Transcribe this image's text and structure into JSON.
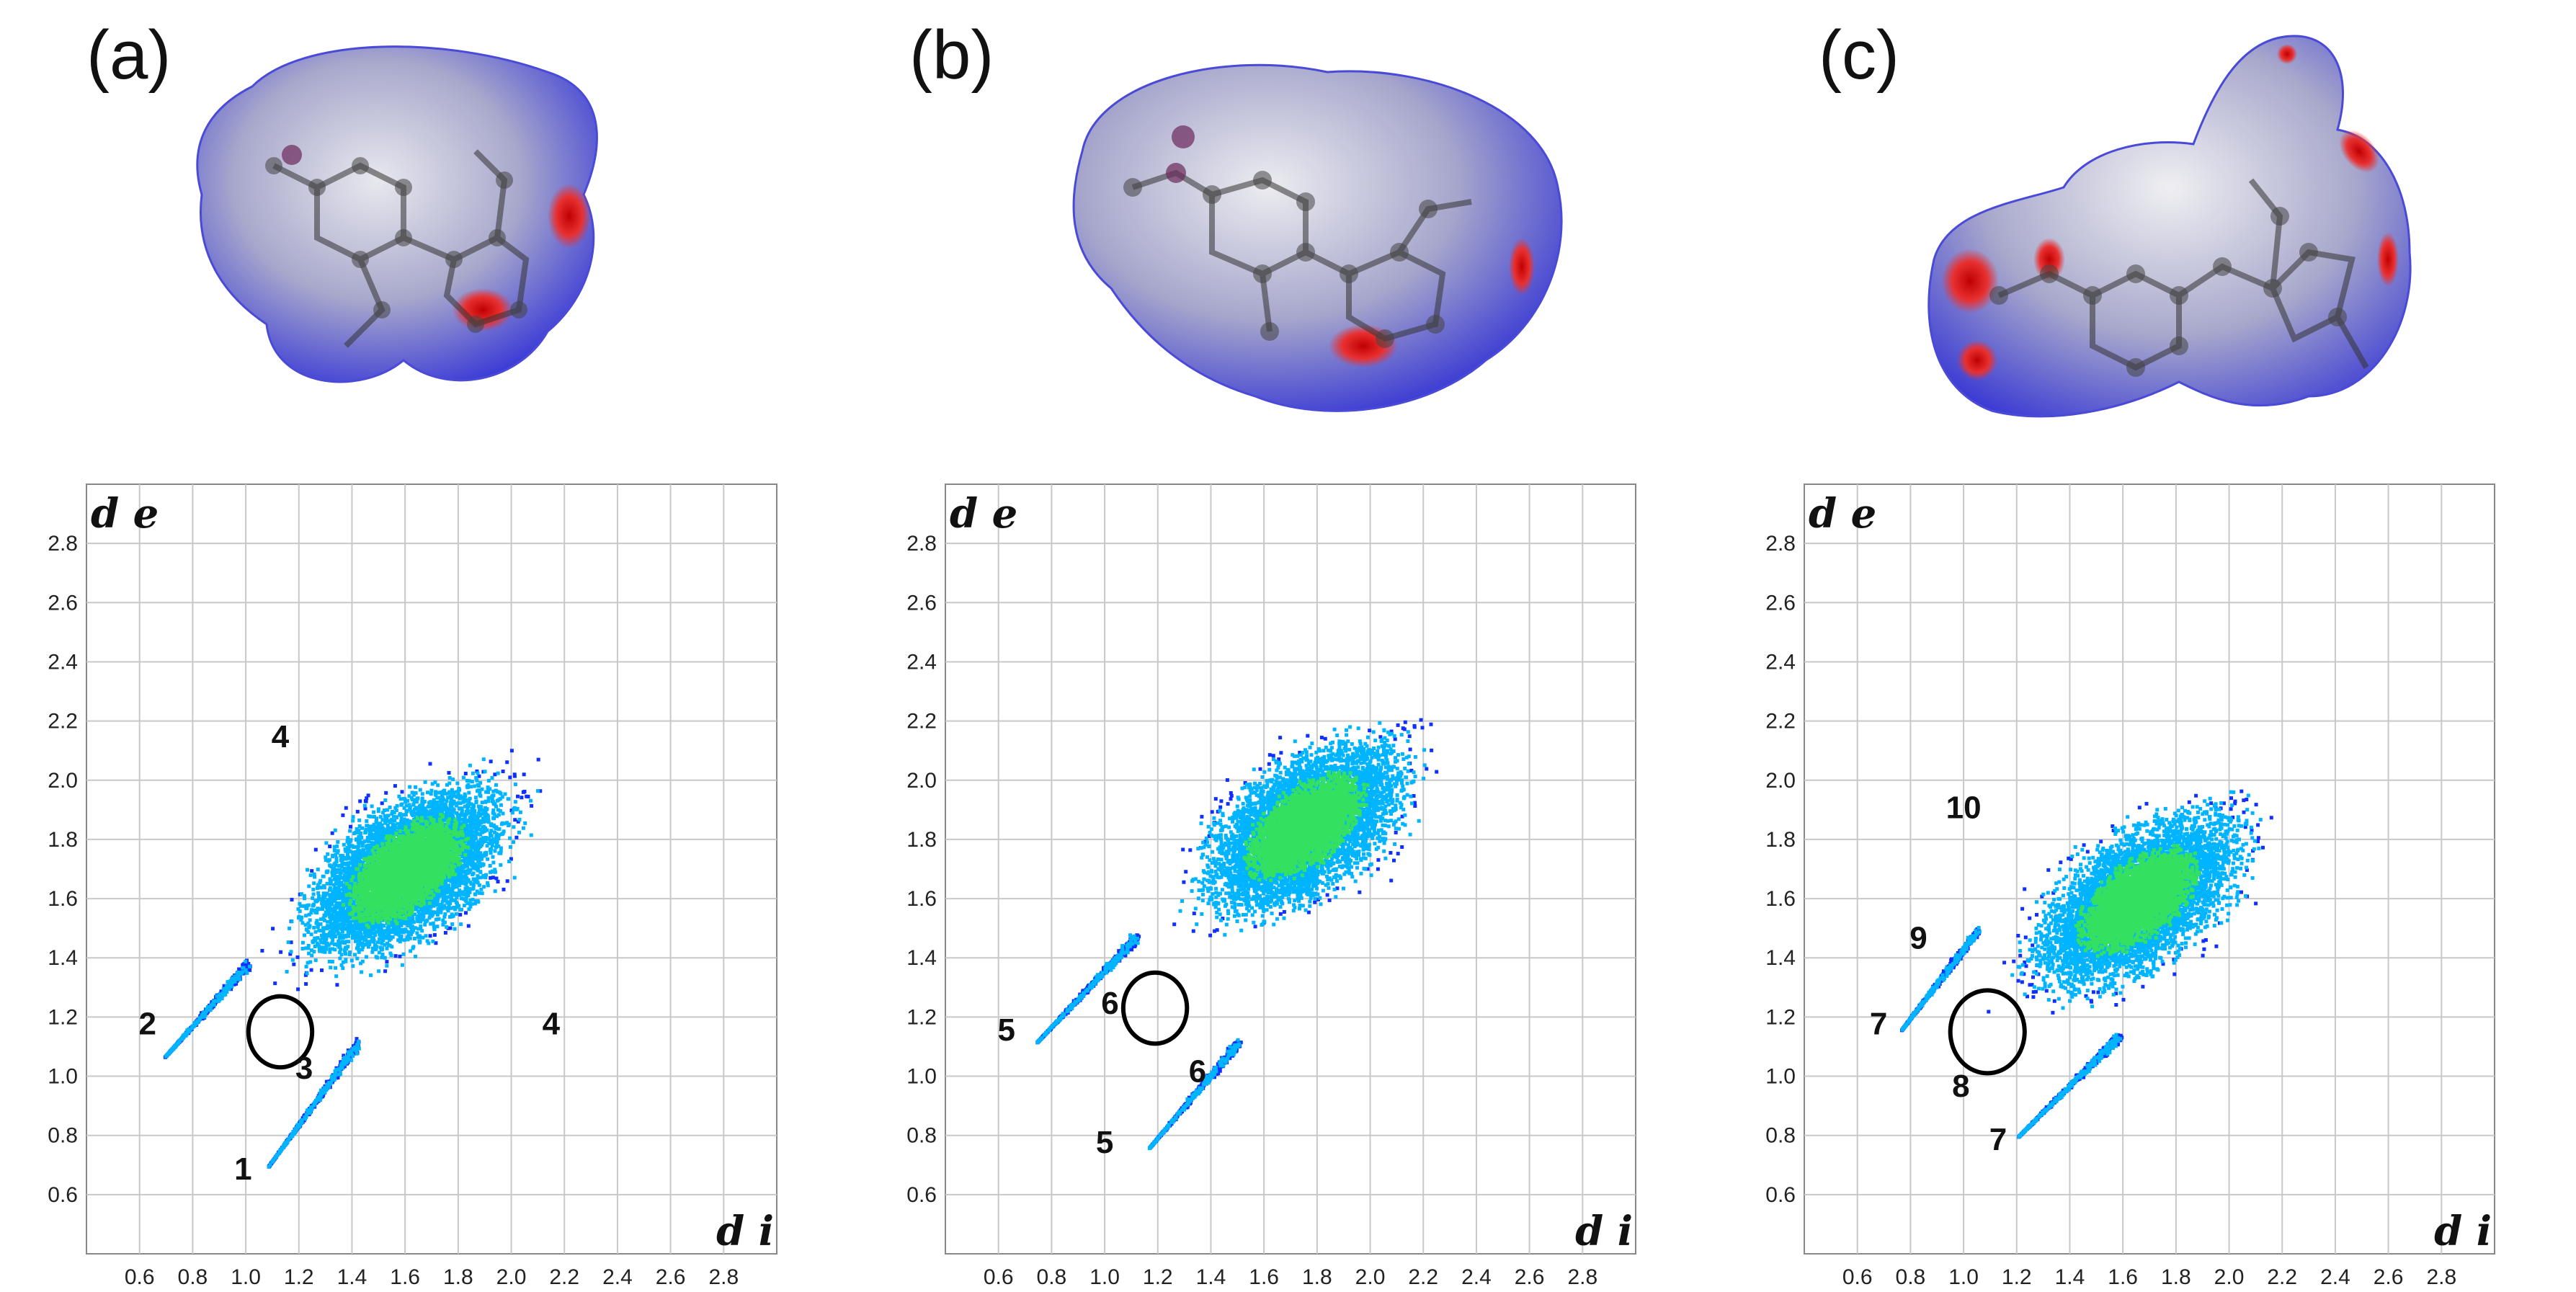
{
  "panels": [
    {
      "label": "(a)",
      "chart_data": {
        "type": "scatter",
        "xlabel": "d i",
        "ylabel": "d e",
        "xlim": [
          0.4,
          3.0
        ],
        "ylim": [
          0.4,
          3.0
        ],
        "x_ticks": [
          "0.6",
          "0.8",
          "1.0",
          "1.2",
          "1.4",
          "1.6",
          "1.8",
          "2.0",
          "2.2",
          "2.4",
          "2.6",
          "2.8"
        ],
        "y_ticks": [
          "0.6",
          "0.8",
          "1.0",
          "1.2",
          "1.4",
          "1.6",
          "1.8",
          "2.0",
          "2.2",
          "2.4",
          "2.6",
          "2.8"
        ],
        "grid": true,
        "annotations": [
          {
            "text": "4",
            "x": 1.13,
            "y": 2.15
          },
          {
            "text": "2",
            "x": 0.63,
            "y": 1.18
          },
          {
            "text": "3",
            "x": 1.22,
            "y": 1.03
          },
          {
            "text": "4",
            "x": 2.15,
            "y": 1.18
          },
          {
            "text": "1",
            "x": 0.99,
            "y": 0.69
          }
        ],
        "circles": [
          {
            "x": 1.13,
            "y": 1.15,
            "r": 0.12
          }
        ],
        "spikes": [
          {
            "from": [
              0.69,
              1.07
            ],
            "to": [
              1.0,
              1.38
            ]
          },
          {
            "from": [
              1.08,
              0.7
            ],
            "to": [
              1.42,
              1.12
            ]
          }
        ]
      }
    },
    {
      "label": "(b)",
      "chart_data": {
        "type": "scatter",
        "xlabel": "d i",
        "ylabel": "d e",
        "xlim": [
          0.4,
          3.0
        ],
        "ylim": [
          0.4,
          3.0
        ],
        "x_ticks": [
          "0.6",
          "0.8",
          "1.0",
          "1.2",
          "1.4",
          "1.6",
          "1.8",
          "2.0",
          "2.2",
          "2.4",
          "2.6",
          "2.8"
        ],
        "y_ticks": [
          "0.6",
          "0.8",
          "1.0",
          "1.2",
          "1.4",
          "1.6",
          "1.8",
          "2.0",
          "2.2",
          "2.4",
          "2.6",
          "2.8"
        ],
        "grid": true,
        "annotations": [
          {
            "text": "6",
            "x": 1.02,
            "y": 1.25
          },
          {
            "text": "5",
            "x": 0.63,
            "y": 1.16
          },
          {
            "text": "6",
            "x": 1.35,
            "y": 1.02
          },
          {
            "text": "5",
            "x": 1.0,
            "y": 0.78
          }
        ],
        "circles": [
          {
            "x": 1.19,
            "y": 1.23,
            "r": 0.12
          }
        ],
        "spikes": [
          {
            "from": [
              0.74,
              1.12
            ],
            "to": [
              1.12,
              1.48
            ]
          },
          {
            "from": [
              1.16,
              0.76
            ],
            "to": [
              1.5,
              1.12
            ]
          }
        ]
      }
    },
    {
      "label": "(c)",
      "chart_data": {
        "type": "scatter",
        "xlabel": "d i",
        "ylabel": "d e",
        "xlim": [
          0.4,
          3.0
        ],
        "ylim": [
          0.4,
          3.0
        ],
        "x_ticks": [
          "0.6",
          "0.8",
          "1.0",
          "1.2",
          "1.4",
          "1.6",
          "1.8",
          "2.0",
          "2.2",
          "2.4",
          "2.6",
          "2.8"
        ],
        "y_ticks": [
          "0.6",
          "0.8",
          "1.0",
          "1.2",
          "1.4",
          "1.6",
          "1.8",
          "2.0",
          "2.2",
          "2.4",
          "2.6",
          "2.8"
        ],
        "grid": true,
        "annotations": [
          {
            "text": "10",
            "x": 1.0,
            "y": 1.91
          },
          {
            "text": "9",
            "x": 0.83,
            "y": 1.47
          },
          {
            "text": "7",
            "x": 0.68,
            "y": 1.18
          },
          {
            "text": "8",
            "x": 0.99,
            "y": 0.97
          },
          {
            "text": "7",
            "x": 1.13,
            "y": 0.79
          }
        ],
        "circles": [
          {
            "x": 1.09,
            "y": 1.15,
            "r": 0.14
          }
        ],
        "spikes": [
          {
            "from": [
              0.76,
              1.16
            ],
            "to": [
              1.05,
              1.5
            ]
          },
          {
            "from": [
              1.2,
              0.8
            ],
            "to": [
              1.58,
              1.14
            ]
          }
        ]
      }
    }
  ],
  "colors": {
    "point_low": "#1030ff",
    "point_mid": "#00b4ff",
    "point_high": "#33e060",
    "grid": "#c8c8c8",
    "contact_red": "#d40000",
    "surface_blue": "#3a3ad0"
  }
}
